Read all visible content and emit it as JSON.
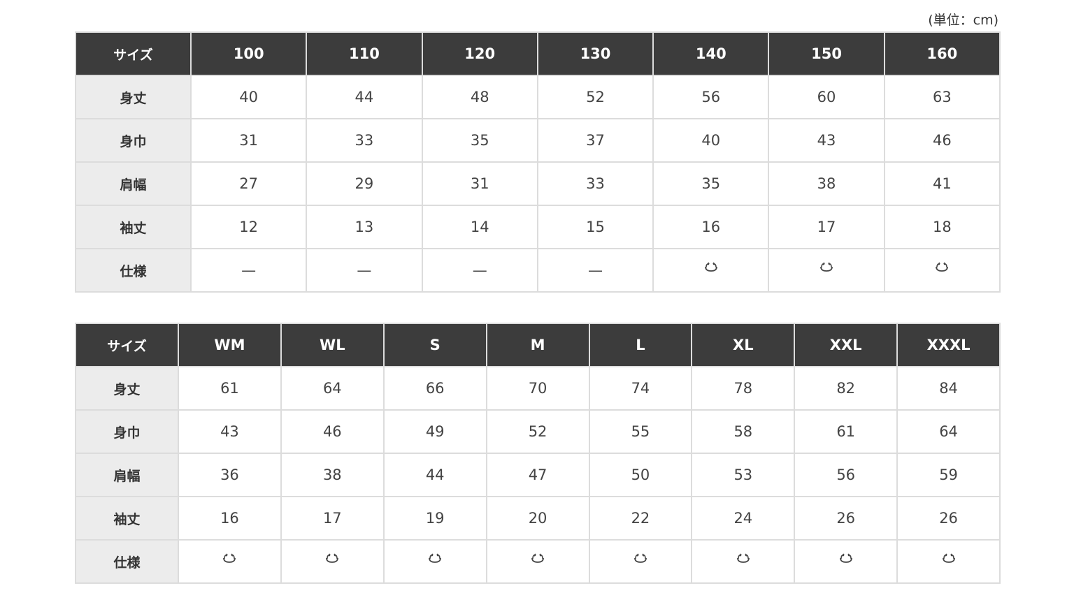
{
  "unit_label": "(単位：cm)",
  "icons": {
    "rib": "ribbed-cuff-icon"
  },
  "tables": [
    {
      "header": [
        "サイズ",
        "100",
        "110",
        "120",
        "130",
        "140",
        "150",
        "160"
      ],
      "rows": [
        {
          "label": "身丈",
          "values": [
            "40",
            "44",
            "48",
            "52",
            "56",
            "60",
            "63"
          ]
        },
        {
          "label": "身巾",
          "values": [
            "31",
            "33",
            "35",
            "37",
            "40",
            "43",
            "46"
          ]
        },
        {
          "label": "肩幅",
          "values": [
            "27",
            "29",
            "31",
            "33",
            "35",
            "38",
            "41"
          ]
        },
        {
          "label": "袖丈",
          "values": [
            "12",
            "13",
            "14",
            "15",
            "16",
            "17",
            "18"
          ]
        },
        {
          "label": "仕様",
          "values": [
            "—",
            "—",
            "—",
            "—",
            "rib",
            "rib",
            "rib"
          ]
        }
      ]
    },
    {
      "header": [
        "サイズ",
        "WM",
        "WL",
        "S",
        "M",
        "L",
        "XL",
        "XXL",
        "XXXL"
      ],
      "rows": [
        {
          "label": "身丈",
          "values": [
            "61",
            "64",
            "66",
            "70",
            "74",
            "78",
            "82",
            "84"
          ]
        },
        {
          "label": "身巾",
          "values": [
            "43",
            "46",
            "49",
            "52",
            "55",
            "58",
            "61",
            "64"
          ]
        },
        {
          "label": "肩幅",
          "values": [
            "36",
            "38",
            "44",
            "47",
            "50",
            "53",
            "56",
            "59"
          ]
        },
        {
          "label": "袖丈",
          "values": [
            "16",
            "17",
            "19",
            "20",
            "22",
            "24",
            "26",
            "26"
          ]
        },
        {
          "label": "仕様",
          "values": [
            "rib",
            "rib",
            "rib",
            "rib",
            "rib",
            "rib",
            "rib",
            "rib"
          ]
        }
      ]
    }
  ]
}
